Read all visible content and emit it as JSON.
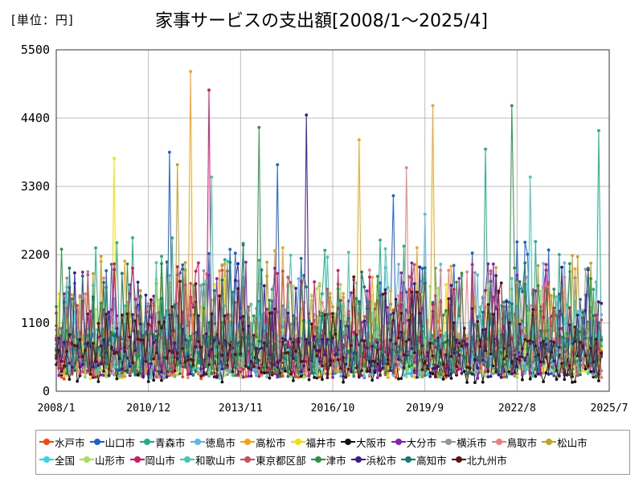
{
  "unit_label": "[単位：円]",
  "chart_data": {
    "type": "line",
    "title": "家事サービスの支出額[2008/1～2025/4]",
    "ylim": [
      0,
      5500
    ],
    "yticks": [
      0,
      1100,
      2200,
      3300,
      4400,
      5500
    ],
    "xticks": [
      "2008/1",
      "2010/12",
      "2013/11",
      "2016/10",
      "2019/9",
      "2022/8",
      "2025/7"
    ],
    "x_start": "2008/1",
    "x_end": "2025/7",
    "last_data": "2025/4",
    "grid": true,
    "legend_position": "bottom",
    "series": [
      {
        "name": "水戸市",
        "color": "#ff4500",
        "base": 560,
        "spike": 1500,
        "seed": 11,
        "peaks": []
      },
      {
        "name": "山口市",
        "color": "#1a5fd6",
        "base": 700,
        "spike": 2200,
        "seed": 12,
        "peaks": [
          {
            "i": 43,
            "v": 3850
          },
          {
            "i": 84,
            "v": 3650
          },
          {
            "i": 128,
            "v": 3150
          }
        ]
      },
      {
        "name": "青森市",
        "color": "#1fae87",
        "base": 720,
        "spike": 2300,
        "seed": 13,
        "peaks": [
          {
            "i": 163,
            "v": 3900
          },
          {
            "i": 206,
            "v": 4200
          }
        ]
      },
      {
        "name": "徳島市",
        "color": "#5db6e8",
        "base": 640,
        "spike": 1900,
        "seed": 14,
        "peaks": [
          {
            "i": 140,
            "v": 2850
          }
        ]
      },
      {
        "name": "高松市",
        "color": "#f5a11a",
        "base": 680,
        "spike": 2100,
        "seed": 15,
        "peaks": [
          {
            "i": 51,
            "v": 5150
          },
          {
            "i": 115,
            "v": 4050
          },
          {
            "i": 143,
            "v": 4600
          }
        ]
      },
      {
        "name": "福井市",
        "color": "#f2e100",
        "base": 560,
        "spike": 1700,
        "seed": 16,
        "peaks": [
          {
            "i": 22,
            "v": 3750
          }
        ]
      },
      {
        "name": "大阪市",
        "color": "#111111",
        "base": 380,
        "spike": 600,
        "seed": 17,
        "peaks": []
      },
      {
        "name": "大分市",
        "color": "#8a1fb5",
        "base": 620,
        "spike": 1900,
        "seed": 18,
        "peaks": []
      },
      {
        "name": "横浜市",
        "color": "#8f96a0",
        "base": 640,
        "spike": 1800,
        "seed": 19,
        "peaks": []
      },
      {
        "name": "鳥取市",
        "color": "#ef7f7f",
        "base": 620,
        "spike": 1800,
        "seed": 20,
        "peaks": [
          {
            "i": 133,
            "v": 3600
          }
        ]
      },
      {
        "name": "松山市",
        "color": "#c3a227",
        "base": 660,
        "spike": 2000,
        "seed": 21,
        "peaks": [
          {
            "i": 46,
            "v": 3650
          }
        ]
      },
      {
        "name": "全国",
        "color": "#33d4f0",
        "base": 580,
        "spike": 1200,
        "seed": 22,
        "peaks": []
      },
      {
        "name": "山形市",
        "color": "#a5e05a",
        "base": 600,
        "spike": 1600,
        "seed": 23,
        "peaks": []
      },
      {
        "name": "岡山市",
        "color": "#d1166b",
        "base": 640,
        "spike": 1900,
        "seed": 24,
        "peaks": [
          {
            "i": 58,
            "v": 4850
          }
        ]
      },
      {
        "name": "和歌山市",
        "color": "#43c7ad",
        "base": 680,
        "spike": 2100,
        "seed": 25,
        "peaks": [
          {
            "i": 59,
            "v": 3450
          },
          {
            "i": 180,
            "v": 3450
          }
        ]
      },
      {
        "name": "東京都区部",
        "color": "#c94f5c",
        "base": 660,
        "spike": 1900,
        "seed": 26,
        "peaks": []
      },
      {
        "name": "津市",
        "color": "#2a9440",
        "base": 700,
        "spike": 2200,
        "seed": 27,
        "peaks": [
          {
            "i": 77,
            "v": 4250
          },
          {
            "i": 173,
            "v": 4600
          }
        ]
      },
      {
        "name": "浜松市",
        "color": "#3a1896",
        "base": 620,
        "spike": 1900,
        "seed": 28,
        "peaks": [
          {
            "i": 95,
            "v": 4450
          }
        ]
      },
      {
        "name": "高知市",
        "color": "#127a73",
        "base": 640,
        "spike": 1900,
        "seed": 29,
        "peaks": []
      },
      {
        "name": "北九州市",
        "color": "#5a1414",
        "base": 600,
        "spike": 1700,
        "seed": 30,
        "peaks": []
      }
    ]
  }
}
